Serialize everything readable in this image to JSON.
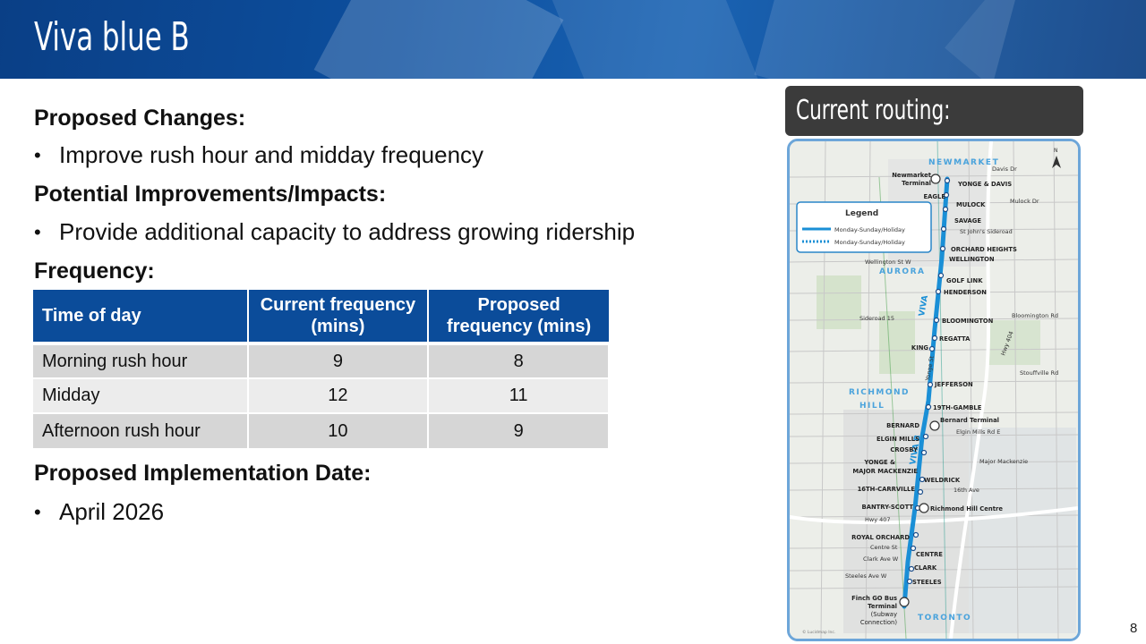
{
  "slide": {
    "title": "Viva blue B",
    "page_number": "8"
  },
  "proposed_changes": {
    "heading": "Proposed Changes:",
    "bullets": [
      "Improve rush hour and midday frequency"
    ]
  },
  "potential_improvements": {
    "heading": "Potential Improvements/Impacts:",
    "bullets": [
      "Provide additional capacity to address growing ridership"
    ]
  },
  "frequency": {
    "heading": "Frequency:",
    "table": {
      "headers": [
        "Time of day",
        "Current frequency (mins)",
        "Proposed frequency (mins)"
      ],
      "rows": [
        [
          "Morning rush hour",
          "9",
          "8"
        ],
        [
          "Midday",
          "12",
          "11"
        ],
        [
          "Afternoon rush hour",
          "10",
          "9"
        ]
      ]
    }
  },
  "implementation": {
    "heading": "Proposed Implementation Date:",
    "bullets": [
      "April 2026"
    ]
  },
  "routing": {
    "label": "Current routing:",
    "map": {
      "legend_title": "Legend",
      "legend_items": [
        "Monday-Sunday/Holiday",
        "Monday-Sunday/Holiday"
      ],
      "areas": [
        "NEWMARKET",
        "AURORA",
        "RICHMOND",
        "HILL",
        "TORONTO"
      ],
      "route_label": "VIVA",
      "stops_right": [
        "YONGE & DAVIS",
        "MULOCK",
        "SAVAGE",
        "ORCHARD HEIGHTS",
        "WELLINGTON",
        "GOLF LINK",
        "HENDERSON",
        "BLOOMINGTON",
        "REGATTA",
        "JEFFERSON",
        "19TH-GAMBLE",
        "WELDRICK",
        "CENTRE",
        "CLARK",
        "STEELES"
      ],
      "stops_left": [
        "EAGLE",
        "KING",
        "BERNARD",
        "ELGIN MILLS",
        "CROSBY",
        "YONGE &",
        "MAJOR MACKENZIE",
        "16TH-CARRVILLE",
        "BANTRY-SCOTT",
        "ROYAL ORCHARD"
      ],
      "terminals": [
        "Newmarket",
        "Terminal",
        "Bernard Terminal",
        "Richmond Hill Centre",
        "Finch GO Bus",
        "Terminal",
        "(Subway",
        "Connection)"
      ],
      "streets": [
        "Davis Dr",
        "Mulock Dr",
        "St John's Sideroad",
        "Wellington St W",
        "Sideroad 15",
        "Bloomington Rd",
        "Hwy 404",
        "Yonge St",
        "Stouffville Rd",
        "Elgin Mills Rd E",
        "Major Mackenzie",
        "16th Ave",
        "Hwy 407",
        "Centre St",
        "Clark Ave W",
        "Steeles Ave W"
      ],
      "route_marker": "VIVA B",
      "north": "N",
      "credit": "© Lucidmap Inc."
    }
  }
}
